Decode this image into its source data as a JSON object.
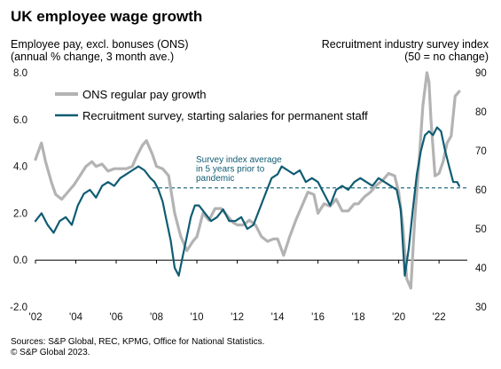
{
  "chart_data": {
    "type": "line",
    "title": "UK employee wage growth",
    "ylabel_left": [
      "Employee pay, excl. bonuses (ONS)",
      "(annual % change, 3 month ave.)"
    ],
    "ylabel_right": [
      "Recruitment industry survey index",
      "(50 = no change)"
    ],
    "x_ticks": [
      "'02",
      "'04",
      "'06",
      "'08",
      "'10",
      "'12",
      "'14",
      "'16",
      "'18",
      "'20",
      "'22"
    ],
    "x_range": [
      2002,
      2023.4
    ],
    "ylim_left": [
      -2.0,
      8.0
    ],
    "yticks_left": [
      "-2.0",
      "0.0",
      "2.0",
      "4.0",
      "6.0",
      "8.0"
    ],
    "ylim_right": [
      30,
      90
    ],
    "yticks_right": [
      "30",
      "40",
      "50",
      "60",
      "70",
      "80",
      "90"
    ],
    "legend_position": "top-left",
    "annotation": {
      "text": [
        "Survey index average",
        "in 5 years prior to",
        "pandemic"
      ],
      "reference_value_right": 60.5
    },
    "series": [
      {
        "name": "ONS regular pay growth",
        "axis": "left",
        "color": "#b3b3b3",
        "x": [
          2002.0,
          2002.3,
          2002.5,
          2002.8,
          2003.0,
          2003.3,
          2003.6,
          2003.9,
          2004.2,
          2004.5,
          2004.8,
          2005.0,
          2005.3,
          2005.6,
          2005.9,
          2006.2,
          2006.5,
          2006.8,
          2007.0,
          2007.3,
          2007.5,
          2007.8,
          2008.0,
          2008.3,
          2008.6,
          2008.9,
          2009.2,
          2009.5,
          2009.8,
          2010.0,
          2010.3,
          2010.6,
          2010.9,
          2011.2,
          2011.5,
          2011.8,
          2012.0,
          2012.3,
          2012.6,
          2012.9,
          2013.2,
          2013.5,
          2013.8,
          2014.0,
          2014.3,
          2014.6,
          2014.9,
          2015.2,
          2015.5,
          2015.8,
          2016.0,
          2016.3,
          2016.6,
          2016.9,
          2017.2,
          2017.5,
          2017.8,
          2018.0,
          2018.3,
          2018.6,
          2018.9,
          2019.2,
          2019.5,
          2019.8,
          2020.0,
          2020.2,
          2020.4,
          2020.6,
          2020.8,
          2021.0,
          2021.2,
          2021.4,
          2021.5,
          2021.6,
          2021.8,
          2022.0,
          2022.2,
          2022.4,
          2022.6,
          2022.8,
          2023.0
        ],
        "values": [
          4.3,
          5.0,
          4.2,
          3.3,
          2.8,
          2.6,
          2.9,
          3.2,
          3.6,
          4.0,
          4.2,
          4.0,
          4.1,
          3.8,
          3.9,
          3.9,
          3.9,
          4.0,
          4.4,
          4.9,
          5.1,
          4.5,
          4.0,
          3.9,
          3.6,
          2.0,
          1.0,
          0.4,
          0.8,
          1.0,
          2.0,
          1.7,
          2.2,
          2.2,
          1.9,
          1.6,
          1.5,
          1.5,
          1.7,
          1.5,
          1.0,
          0.8,
          0.9,
          0.9,
          0.2,
          1.0,
          1.7,
          2.3,
          2.9,
          2.8,
          2.0,
          2.4,
          2.3,
          2.6,
          2.1,
          2.1,
          2.4,
          2.4,
          2.7,
          2.9,
          3.2,
          3.4,
          3.7,
          3.6,
          2.9,
          1.5,
          -0.8,
          -1.2,
          1.8,
          4.1,
          6.6,
          8.0,
          7.6,
          6.0,
          3.6,
          3.7,
          4.2,
          5.0,
          5.3,
          7.0,
          7.2
        ]
      },
      {
        "name": "Recruitment survey, starting salaries for permanent staff",
        "axis": "right",
        "color": "#0f5c73",
        "x": [
          2002.0,
          2002.3,
          2002.6,
          2002.9,
          2003.2,
          2003.5,
          2003.8,
          2004.1,
          2004.4,
          2004.7,
          2005.0,
          2005.3,
          2005.6,
          2005.9,
          2006.2,
          2006.5,
          2006.8,
          2007.1,
          2007.4,
          2007.7,
          2007.9,
          2008.1,
          2008.3,
          2008.5,
          2008.7,
          2008.9,
          2009.1,
          2009.3,
          2009.5,
          2009.7,
          2009.9,
          2010.1,
          2010.4,
          2010.7,
          2011.0,
          2011.3,
          2011.6,
          2011.9,
          2012.2,
          2012.5,
          2012.8,
          2013.1,
          2013.4,
          2013.7,
          2014.0,
          2014.2,
          2014.5,
          2014.8,
          2015.1,
          2015.4,
          2015.7,
          2016.0,
          2016.3,
          2016.6,
          2016.9,
          2017.2,
          2017.5,
          2017.8,
          2018.1,
          2018.4,
          2018.7,
          2019.0,
          2019.3,
          2019.6,
          2019.9,
          2020.1,
          2020.3,
          2020.5,
          2020.7,
          2020.9,
          2021.1,
          2021.3,
          2021.5,
          2021.7,
          2021.9,
          2022.1,
          2022.3,
          2022.5,
          2022.7,
          2022.9,
          2023.0
        ],
        "values": [
          52,
          54,
          51,
          49,
          52,
          53,
          51,
          56,
          59,
          60,
          58,
          61,
          62,
          61,
          63,
          64,
          65,
          66,
          65,
          63,
          62,
          60,
          57,
          52,
          47,
          40,
          38,
          43,
          48,
          53,
          56,
          56,
          54,
          52,
          53,
          55,
          52,
          52,
          53,
          50,
          51,
          55,
          59,
          63,
          64,
          66,
          65,
          64,
          65,
          62,
          63,
          62,
          59,
          56,
          60,
          61,
          60,
          62,
          63,
          62,
          61,
          63,
          62,
          61,
          60,
          55,
          38,
          45,
          55,
          64,
          70,
          74,
          75,
          74,
          76,
          75,
          70,
          66,
          62,
          62,
          61
        ]
      }
    ]
  },
  "sources": [
    "Sources: S&P Global, REC, KPMG, Office for National Statistics.",
    "© S&P Global 2023."
  ]
}
